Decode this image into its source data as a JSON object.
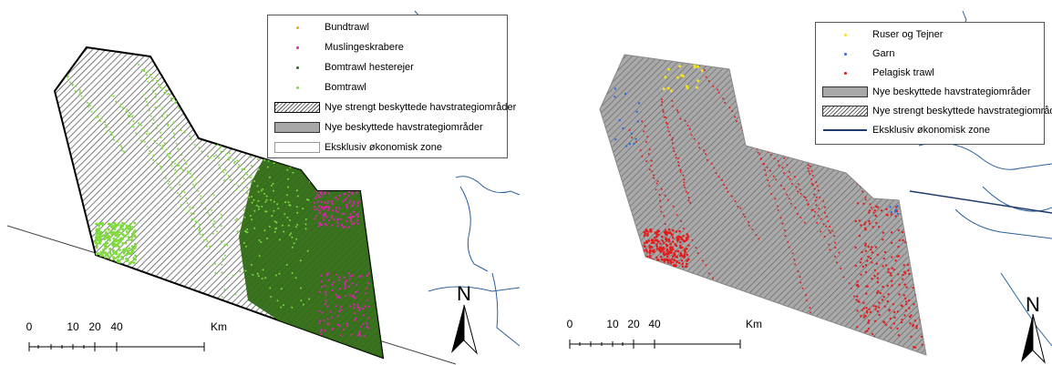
{
  "panels": [
    {
      "legend": {
        "items": [
          {
            "label": "Bundtrawl",
            "symbol": "dot",
            "color": "#f5a623"
          },
          {
            "label": "Muslingeskrabere",
            "symbol": "dot",
            "color": "#e020b0"
          },
          {
            "label": "Bomtrawl hesterejer",
            "symbol": "dot",
            "color": "#2f6a14"
          },
          {
            "label": "Bomtrawl",
            "symbol": "dot",
            "color": "#7ddc3a"
          },
          {
            "label": "Nye strengt beskyttede havstrategiområder",
            "symbol": "hatch"
          },
          {
            "label": "Nye beskyttede havstrategiområder",
            "symbol": "grey"
          },
          {
            "label": "Eksklusiv økonomisk zone",
            "symbol": "box"
          }
        ]
      },
      "scalebar": {
        "ticks": [
          "0",
          "10",
          "20",
          "40"
        ],
        "unit": "Km"
      },
      "north_label": "N"
    },
    {
      "legend": {
        "items": [
          {
            "label": "Ruser og Tejner",
            "symbol": "dot",
            "color": "#f2e31b"
          },
          {
            "label": "Garn",
            "symbol": "dot",
            "color": "#2a6fdb"
          },
          {
            "label": "Pelagisk trawl",
            "symbol": "dot",
            "color": "#d42020"
          },
          {
            "label": "Nye beskyttede havstrategiområder",
            "symbol": "grey"
          },
          {
            "label": "Nye strengt beskyttede havstrategiområder",
            "symbol": "hatch"
          },
          {
            "label": "Eksklusiv økonomisk zone",
            "symbol": "line",
            "color": "#1f3a6b"
          }
        ]
      },
      "scalebar": {
        "ticks": [
          "0",
          "10",
          "20",
          "40"
        ],
        "unit": "Km"
      },
      "north_label": "N"
    }
  ],
  "colors": {
    "hatch_line": "#555555",
    "protected_grey": "#a8a8a8",
    "coast": "#2b5f9e",
    "dark_green_fishing": "#2f6a14",
    "light_green_fishing": "#7ddc3a",
    "magenta_fishing": "#e020b0",
    "red_fishing": "#e31c1c",
    "blue_fishing": "#2a6fdb",
    "yellow_fishing": "#f2e31b"
  }
}
